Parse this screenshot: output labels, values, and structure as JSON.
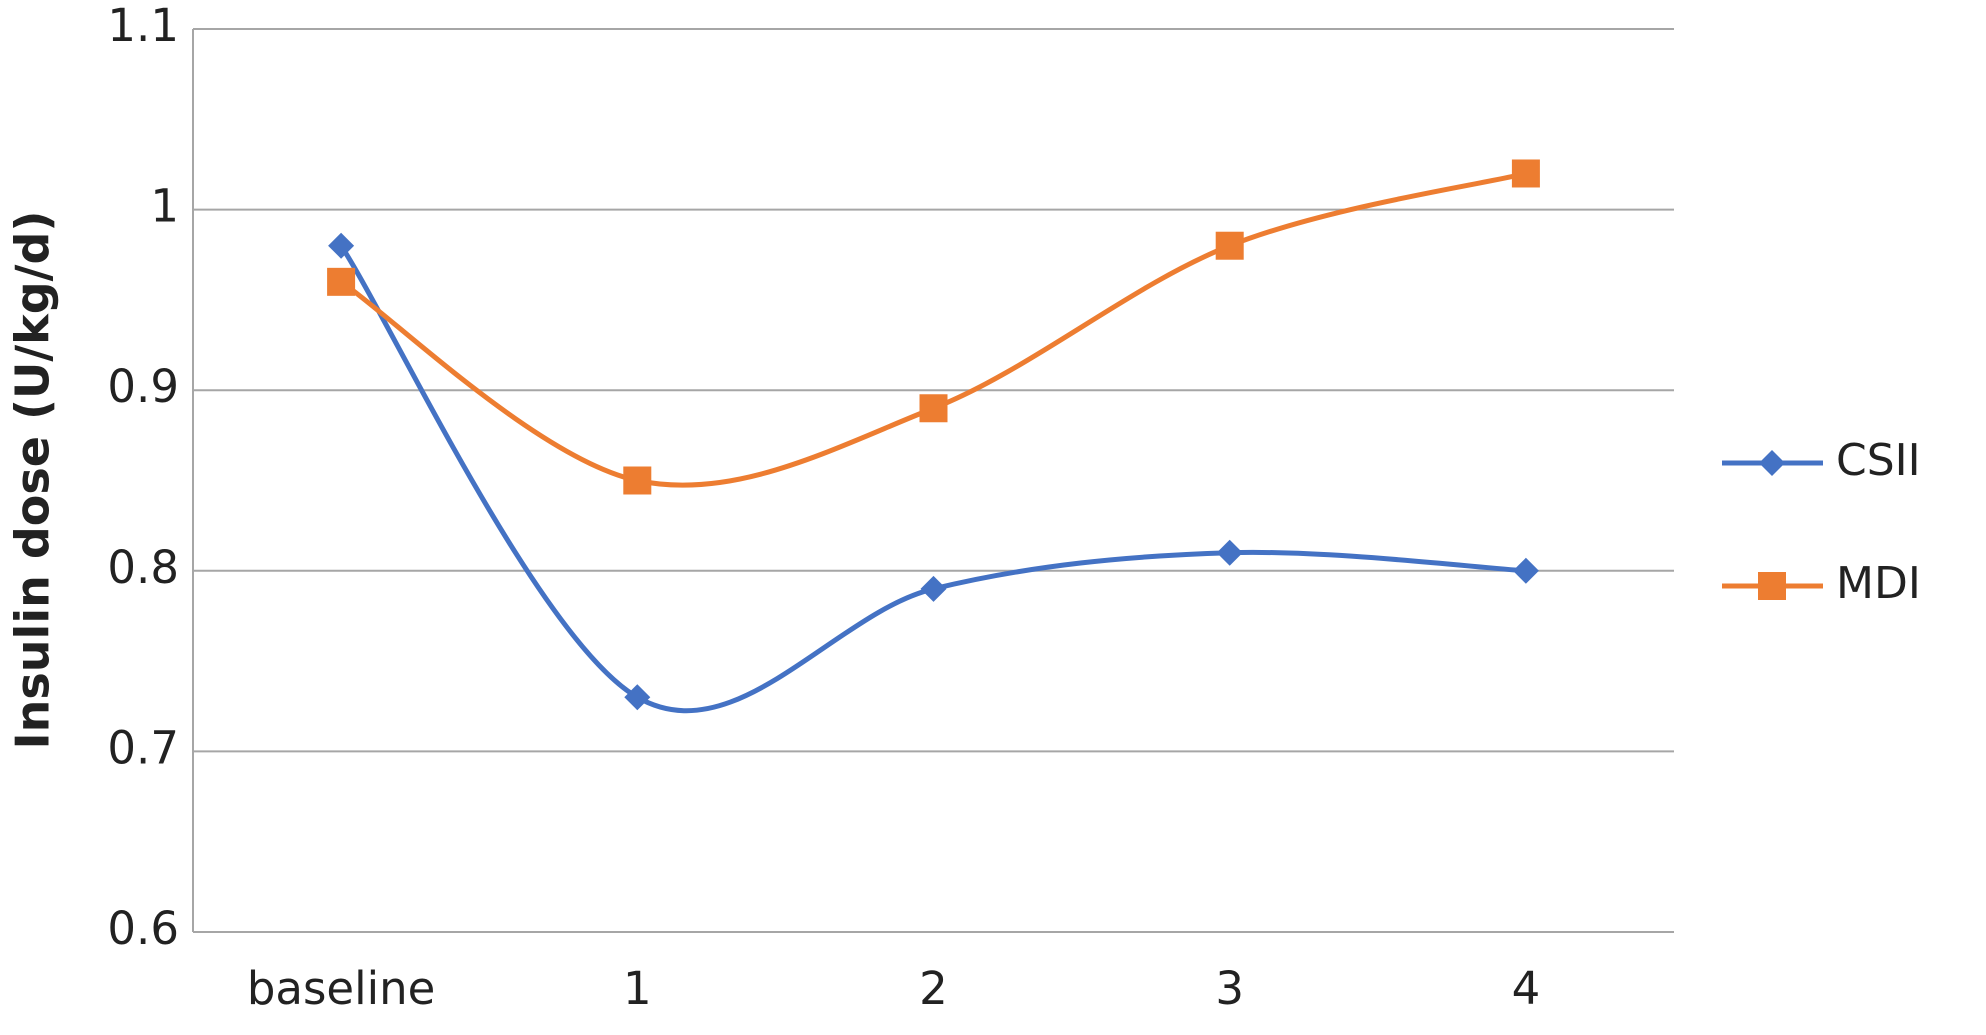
{
  "chart_data": {
    "type": "line",
    "y_label": "Insulin dose (U/kg/d)",
    "categories": [
      "baseline",
      "1",
      "2",
      "3",
      "4"
    ],
    "series": [
      {
        "name": "CSII",
        "color": "#4472c4",
        "marker": "diamond",
        "values": [
          0.98,
          0.73,
          0.79,
          0.81,
          0.8
        ]
      },
      {
        "name": "MDI",
        "color": "#ed7d31",
        "marker": "square",
        "values": [
          0.96,
          0.85,
          0.89,
          0.98,
          1.02
        ]
      }
    ],
    "ylim": [
      0.6,
      1.1
    ],
    "yticks": [
      0.6,
      0.7,
      0.8,
      0.9,
      1,
      1.1
    ],
    "grid": true,
    "smooth": true,
    "legend": "right"
  }
}
